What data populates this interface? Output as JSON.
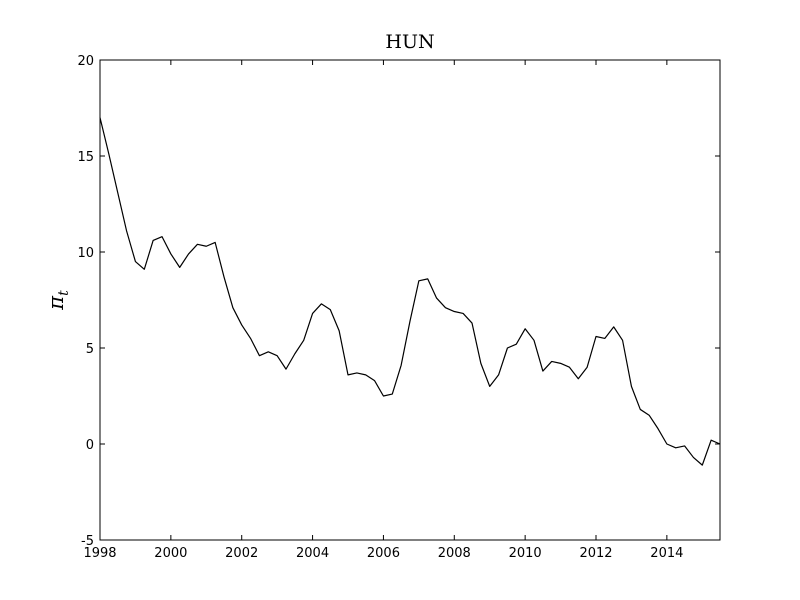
{
  "chart_data": {
    "type": "line",
    "title": "HUN",
    "xlabel": "",
    "ylabel": "π",
    "ylabel_subscript": "t",
    "xlim": [
      1998,
      2015.5
    ],
    "ylim": [
      -5,
      20
    ],
    "xticks": [
      1998,
      2000,
      2002,
      2004,
      2006,
      2008,
      2010,
      2012,
      2014
    ],
    "yticks": [
      -5,
      0,
      5,
      10,
      15,
      20
    ],
    "grid": false,
    "series": [
      {
        "color": "#000000",
        "x": [
          1998.0,
          1998.25,
          1998.5,
          1998.75,
          1999.0,
          1999.25,
          1999.5,
          1999.75,
          2000.0,
          2000.25,
          2000.5,
          2000.75,
          2001.0,
          2001.25,
          2001.5,
          2001.75,
          2002.0,
          2002.25,
          2002.5,
          2002.75,
          2003.0,
          2003.25,
          2003.5,
          2003.75,
          2004.0,
          2004.25,
          2004.5,
          2004.75,
          2005.0,
          2005.25,
          2005.5,
          2005.75,
          2006.0,
          2006.25,
          2006.5,
          2006.75,
          2007.0,
          2007.25,
          2007.5,
          2007.75,
          2008.0,
          2008.25,
          2008.5,
          2008.75,
          2009.0,
          2009.25,
          2009.5,
          2009.75,
          2010.0,
          2010.25,
          2010.5,
          2010.75,
          2011.0,
          2011.25,
          2011.5,
          2011.75,
          2012.0,
          2012.25,
          2012.5,
          2012.75,
          2013.0,
          2013.25,
          2013.5,
          2013.75,
          2014.0,
          2014.25,
          2014.5,
          2014.75,
          2015.0,
          2015.25,
          2015.5
        ],
        "y": [
          17.0,
          15.1,
          13.1,
          11.1,
          9.5,
          9.1,
          10.6,
          10.8,
          9.9,
          9.2,
          9.9,
          10.4,
          10.3,
          10.5,
          8.7,
          7.1,
          6.2,
          5.5,
          4.6,
          4.8,
          4.6,
          3.9,
          4.7,
          5.4,
          6.8,
          7.3,
          7.0,
          5.9,
          3.6,
          3.7,
          3.6,
          3.3,
          2.5,
          2.6,
          4.1,
          6.4,
          8.5,
          8.6,
          7.6,
          7.1,
          6.9,
          6.8,
          6.3,
          4.2,
          3.0,
          3.6,
          5.0,
          5.2,
          6.0,
          5.4,
          3.8,
          4.3,
          4.2,
          4.0,
          3.4,
          4.0,
          5.6,
          5.5,
          6.1,
          5.4,
          3.0,
          1.8,
          1.5,
          0.8,
          0.0,
          -0.2,
          -0.1,
          -0.7,
          -1.1,
          0.2,
          0.0
        ]
      }
    ]
  }
}
